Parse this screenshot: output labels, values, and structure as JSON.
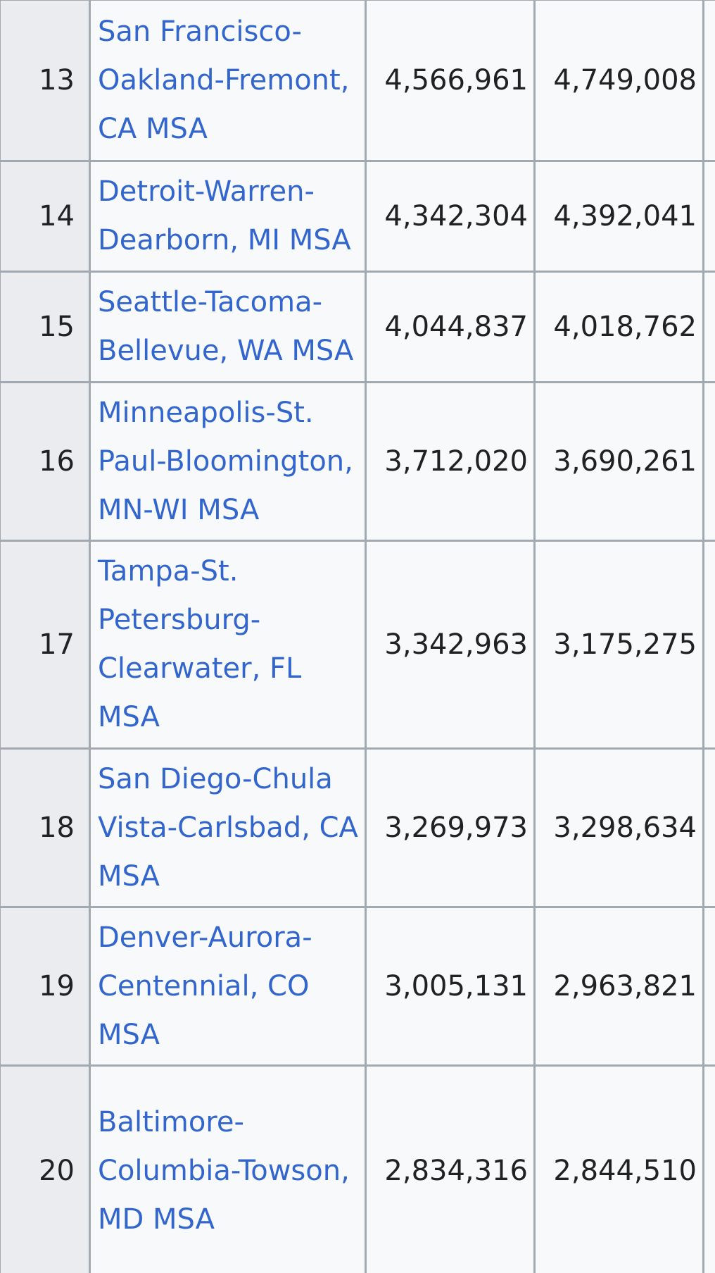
{
  "rows": [
    {
      "rank": "13",
      "name": "San Francisco-Oakland-Fremont, CA MSA",
      "value_a": "4,566,961",
      "value_b": "4,749,008"
    },
    {
      "rank": "14",
      "name": "Detroit-Warren-Dearborn, MI MSA",
      "value_a": "4,342,304",
      "value_b": "4,392,041"
    },
    {
      "rank": "15",
      "name": "Seattle-Tacoma-Bellevue, WA MSA",
      "value_a": "4,044,837",
      "value_b": "4,018,762"
    },
    {
      "rank": "16",
      "name": "Minneapolis-St. Paul-Bloomington, MN-WI MSA",
      "value_a": "3,712,020",
      "value_b": "3,690,261"
    },
    {
      "rank": "17",
      "name": "Tampa-St. Petersburg-Clearwater, FL MSA",
      "value_a": "3,342,963",
      "value_b": "3,175,275"
    },
    {
      "rank": "18",
      "name": "San Diego-Chula Vista-Carlsbad, CA MSA",
      "value_a": "3,269,973",
      "value_b": "3,298,634"
    },
    {
      "rank": "19",
      "name": "Denver-Aurora-Centennial, CO MSA",
      "value_a": "3,005,131",
      "value_b": "2,963,821"
    },
    {
      "rank": "20",
      "name": "Baltimore-Columbia-Towson, MD MSA",
      "value_a": "2,834,316",
      "value_b": "2,844,510"
    }
  ],
  "colors": {
    "link": "#3366cc",
    "text": "#202122",
    "border": "#a2a9b1",
    "rank_background": "#eaecf0",
    "cell_background": "#f8f9fa"
  }
}
